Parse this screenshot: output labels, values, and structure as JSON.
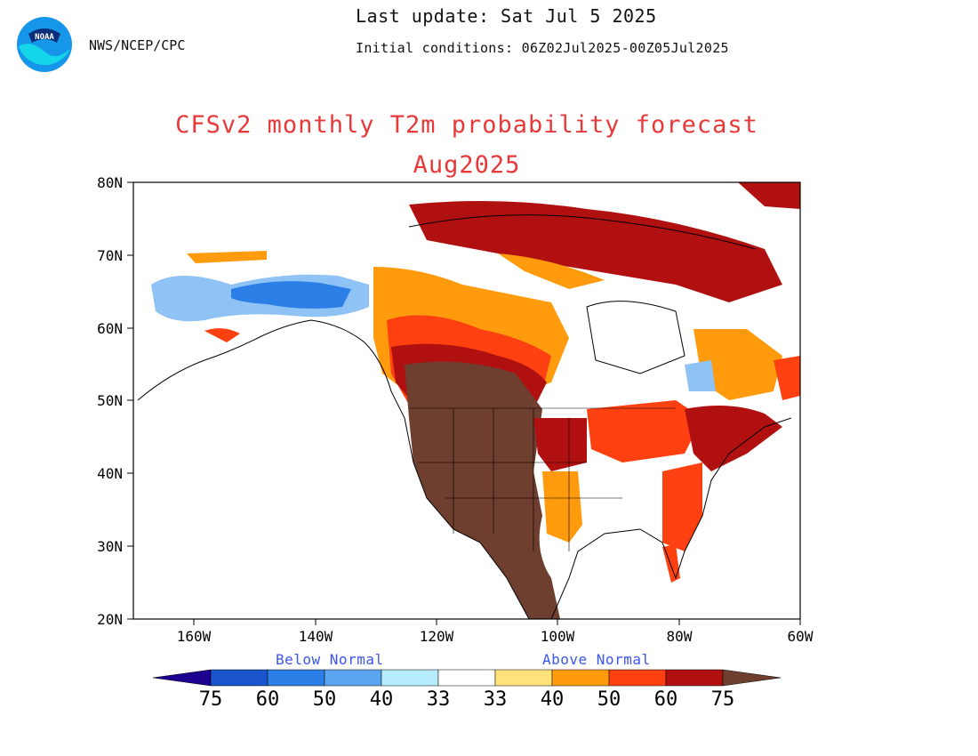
{
  "header": {
    "agency": "NWS/NCEP/CPC",
    "last_update": "Last update: Sat Jul 5 2025",
    "initial_conditions": "Initial conditions: 06Z02Jul2025-00Z05Jul2025",
    "logo_text": "NOAA"
  },
  "title": "CFSv2 monthly T2m probability forecast",
  "subtitle": "Aug2025",
  "map": {
    "lat_labels": [
      "80N",
      "70N",
      "60N",
      "50N",
      "40N",
      "30N",
      "20N"
    ],
    "lon_labels": [
      "160W",
      "140W",
      "120W",
      "100W",
      "80W",
      "60W"
    ],
    "extent": {
      "lon_min": -170,
      "lon_max": -60,
      "lat_min": 20,
      "lat_max": 80
    }
  },
  "legend": {
    "below_label": "Below Normal",
    "above_label": "Above Normal",
    "below_colors": [
      "#1d0090",
      "#1a55cc",
      "#2c7fe6",
      "#5ba5f0",
      "#8fc2f5",
      "#b6ecfb"
    ],
    "above_colors": [
      "#ffe27a",
      "#ff9b0d",
      "#ff4010",
      "#b01010",
      "#6e3e2e"
    ],
    "ticks": [
      "75",
      "60",
      "50",
      "40",
      "33",
      "33",
      "40",
      "50",
      "60",
      "75"
    ]
  },
  "colors": {
    "title": "#e8393a",
    "category_label": "#3b56f0"
  }
}
